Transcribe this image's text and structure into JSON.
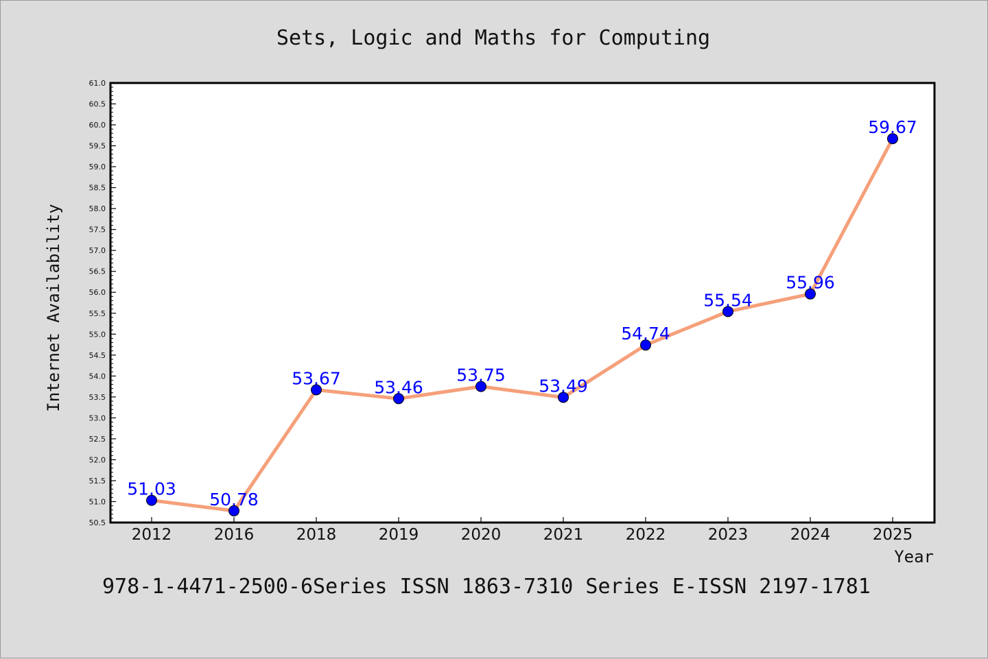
{
  "chart_data": {
    "type": "line",
    "title": "Sets, Logic and Maths for Computing",
    "xlabel": "Year",
    "ylabel": "Internet Availability",
    "categories": [
      "2012",
      "2016",
      "2018",
      "2019",
      "2020",
      "2021",
      "2022",
      "2023",
      "2024",
      "2025"
    ],
    "values": [
      51.03,
      50.78,
      53.67,
      53.46,
      53.75,
      53.49,
      54.74,
      55.54,
      55.96,
      59.67
    ],
    "data_labels": [
      "51.03",
      "50.78",
      "53.67",
      "53.46",
      "53.75",
      "53.49",
      "54.74",
      "55.54",
      "55.96",
      "59.67"
    ],
    "ylim": [
      50.5,
      61.0
    ],
    "ytick_step": 0.5,
    "grid": false,
    "line_color": "#f5a07a",
    "marker_color": "#0000ff",
    "label_color": "#0000ff",
    "footer": "978-1-4471-2500-6Series ISSN 1863-7310 Series E-ISSN 2197-1781"
  }
}
